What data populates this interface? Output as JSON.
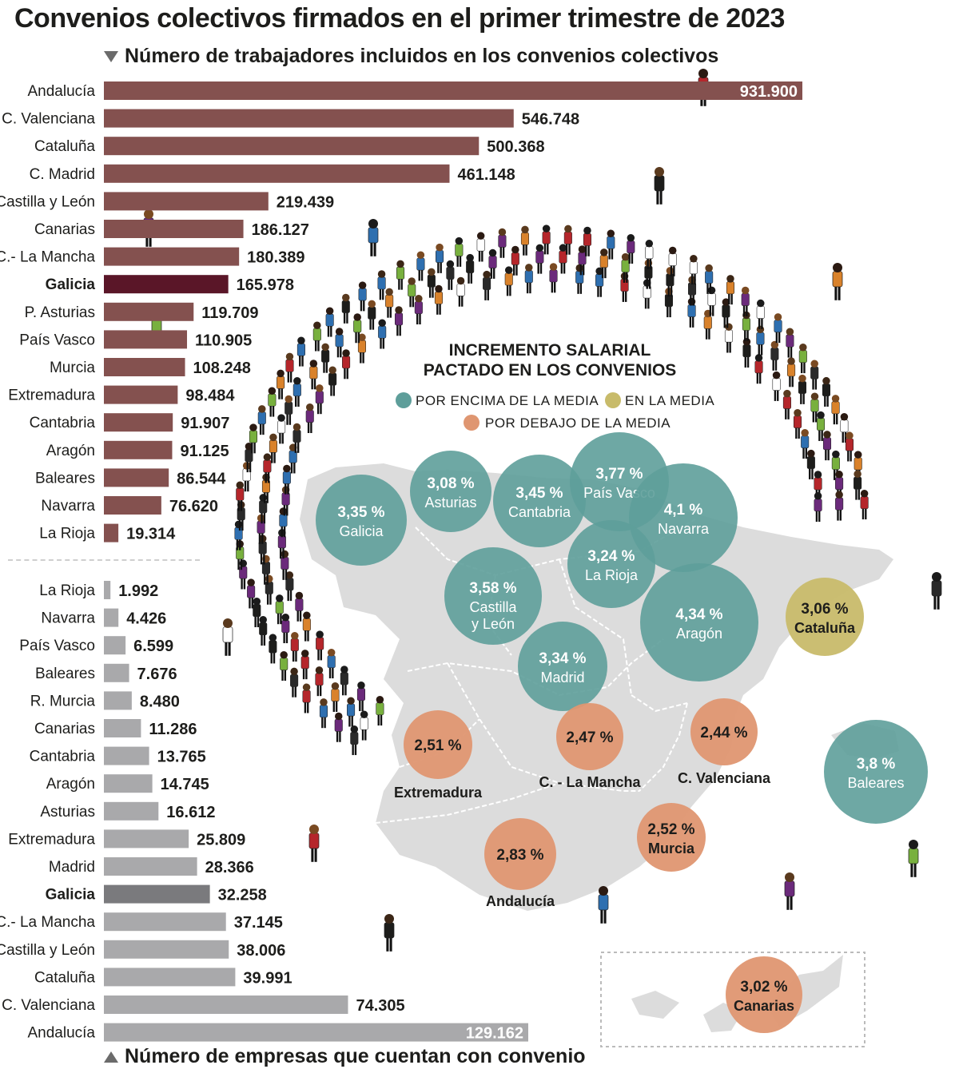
{
  "title": "Convenios colectivos firmados en el primer trimestre de 2023",
  "workers_subtitle": "Número de trabajadores incluidos en los convenios colectivos",
  "companies_subtitle": "Número de empresas que cuentan con convenio",
  "colors": {
    "workers_bar": "#84514f",
    "workers_highlight": "#5a1628",
    "companies_bar": "#a9a9ab",
    "companies_highlight": "#7a7a7d",
    "above": "#5e9e9a",
    "at": "#c8bb6a",
    "below": "#df9671",
    "map": "#dcdcdc"
  },
  "icons": [
    "triangle-down-icon",
    "triangle-up-icon",
    "person-figure-icon"
  ],
  "chart_data": [
    {
      "type": "bar",
      "orientation": "horizontal",
      "title": "Número de trabajadores incluidos en los convenios colectivos",
      "highlight": "Galicia",
      "categories": [
        "Andalucía",
        "C. Valenciana",
        "Cataluña",
        "C. Madrid",
        "Castilla y León",
        "Canarias",
        "C.- La Mancha",
        "Galicia",
        "P. Asturias",
        "País Vasco",
        "Murcia",
        "Extremadura",
        "Cantabria",
        "Aragón",
        "Baleares",
        "Navarra",
        "La Rioja"
      ],
      "values": [
        931900,
        546748,
        500368,
        461148,
        219439,
        186127,
        180389,
        165978,
        119709,
        110905,
        108248,
        98484,
        91907,
        91125,
        86544,
        76620,
        19314
      ],
      "labels": [
        "931.900",
        "546.748",
        "500.368",
        "461.148",
        "219.439",
        "186.127",
        "180.389",
        "165.978",
        "119.709",
        "110.905",
        "108.248",
        "98.484",
        "91.907",
        "91.125",
        "86.544",
        "76.620",
        "19.314"
      ]
    },
    {
      "type": "bar",
      "orientation": "horizontal",
      "title": "Número de empresas que cuentan con convenio",
      "highlight": "Galicia",
      "categories": [
        "La Rioja",
        "Navarra",
        "País Vasco",
        "Baleares",
        "R. Murcia",
        "Canarias",
        "Cantabria",
        "Aragón",
        "Asturias",
        "Extremadura",
        "Madrid",
        "Galicia",
        "C.- La Mancha",
        "Castilla y León",
        "Cataluña",
        "C. Valenciana",
        "Andalucía"
      ],
      "values": [
        1992,
        4426,
        6599,
        7676,
        8480,
        11286,
        13765,
        14745,
        16612,
        25809,
        28366,
        32258,
        37145,
        38006,
        39991,
        74305,
        129162
      ],
      "labels": [
        "1.992",
        "4.426",
        "6.599",
        "7.676",
        "8.480",
        "11.286",
        "13.765",
        "14.745",
        "16.612",
        "25.809",
        "28.366",
        "32.258",
        "37.145",
        "38.006",
        "39.991",
        "74.305",
        "129.162"
      ]
    },
    {
      "type": "bubble_map",
      "title": "INCREMENTO SALARIAL PACTADO EN LOS CONVENIOS",
      "legend": [
        {
          "label": "POR ENCIMA DE LA MEDIA",
          "class": "above"
        },
        {
          "label": "EN LA MEDIA",
          "class": "at"
        },
        {
          "label": "POR DEBAJO DE LA MEDIA",
          "class": "below"
        }
      ],
      "regions": [
        {
          "name": "Galicia",
          "value": 3.35,
          "label": "3,35 %",
          "class": "above"
        },
        {
          "name": "Asturias",
          "value": 3.08,
          "label": "3,08  %",
          "class": "above"
        },
        {
          "name": "Cantabria",
          "value": 3.45,
          "label": "3,45  %",
          "class": "above"
        },
        {
          "name": "País Vasco",
          "value": 3.77,
          "label": "3,77 %",
          "class": "above"
        },
        {
          "name": "Navarra",
          "value": 4.1,
          "label": "4,1 %",
          "class": "above"
        },
        {
          "name": "La Rioja",
          "value": 3.24,
          "label": "3,24  %",
          "class": "above"
        },
        {
          "name": "Castilla y León",
          "value": 3.58,
          "label": "3,58 %",
          "class": "above"
        },
        {
          "name": "Aragón",
          "value": 4.34,
          "label": "4,34 %",
          "class": "above"
        },
        {
          "name": "Cataluña",
          "value": 3.06,
          "label": "3,06 %",
          "class": "at"
        },
        {
          "name": "Madrid",
          "value": 3.34,
          "label": "3,34 %",
          "class": "above"
        },
        {
          "name": "Extremadura",
          "value": 2.51,
          "label": "2,51 %",
          "class": "below"
        },
        {
          "name": "C. - La Mancha",
          "value": 2.47,
          "label": "2,47 %",
          "class": "below"
        },
        {
          "name": "C. Valenciana",
          "value": 2.44,
          "label": "2,44 %",
          "class": "below"
        },
        {
          "name": "Baleares",
          "value": 3.8,
          "label": "3,8 %",
          "class": "above"
        },
        {
          "name": "Murcia",
          "value": 2.52,
          "label": "2,52 %",
          "class": "below"
        },
        {
          "name": "Andalucía",
          "value": 2.83,
          "label": "2,83 %",
          "class": "below"
        },
        {
          "name": "Canarias",
          "value": 3.02,
          "label": "3,02 %",
          "class": "below"
        }
      ]
    }
  ]
}
